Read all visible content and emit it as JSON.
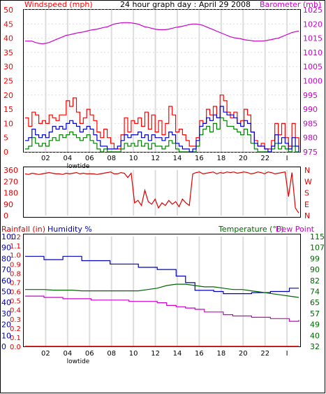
{
  "colors": {
    "wind": "#ff0000",
    "gust": "#ff0000",
    "avgwind": "#0000cc",
    "minwind": "#008000",
    "baro": "#cc00cc",
    "direction": "#dd0000",
    "rain": "#dd0000",
    "humidity": "#0000bb",
    "temperature": "#006600",
    "dewpoint": "#cc00cc",
    "grid": "#dddddd",
    "frame": "#000000"
  },
  "chart_data": [
    {
      "type": "line",
      "title": "24 hour graph day : April 29 2008",
      "left_label": "Windspeed (mph)",
      "right_label": "Barometer (mb)",
      "x_ticks": [
        "02",
        "04",
        "06",
        "08",
        "10",
        "12",
        "14",
        "16",
        "18",
        "20",
        "22",
        "I"
      ],
      "x_marker": "lowtide",
      "ylim_left": [
        0,
        50
      ],
      "ylim_right": [
        975,
        1025
      ],
      "yticks_left": [
        "50",
        "45",
        "40",
        "35",
        "30",
        "25",
        "20",
        "15",
        "10",
        "5",
        "0"
      ],
      "yticks_right": [
        "1025",
        "1020",
        "1015",
        "1010",
        "1005",
        "1000",
        "995",
        "990",
        "985",
        "980",
        "975"
      ],
      "series": [
        {
          "values": [
            12,
            9,
            14,
            13,
            10,
            11,
            10,
            13,
            12,
            11,
            13,
            13,
            18,
            16,
            19,
            14,
            10,
            12,
            15,
            13,
            11,
            7,
            5,
            8,
            5,
            3,
            1,
            1,
            6,
            12,
            7,
            11,
            10,
            12,
            9,
            14,
            8,
            13,
            7,
            11,
            6,
            10,
            16,
            13,
            7,
            8,
            6,
            4,
            2,
            2,
            5,
            11,
            10,
            15,
            13,
            16,
            12,
            20,
            18,
            14,
            12,
            14,
            10,
            11,
            15,
            13,
            7,
            4,
            2,
            3,
            1,
            1,
            4,
            10,
            6,
            10,
            5,
            2,
            10,
            5,
            1
          ]
        },
        {
          "values": [
            4,
            5,
            8,
            6,
            5,
            6,
            5,
            7,
            9,
            8,
            9,
            8,
            10,
            11,
            10,
            9,
            7,
            8,
            9,
            8,
            6,
            4,
            2,
            2,
            1,
            1,
            1,
            2,
            4,
            6,
            5,
            6,
            6,
            7,
            5,
            6,
            4,
            6,
            5,
            5,
            4,
            5,
            7,
            6,
            3,
            2,
            1,
            1,
            0,
            1,
            4,
            9,
            10,
            12,
            11,
            13,
            12,
            16,
            14,
            13,
            13,
            12,
            10,
            9,
            11,
            10,
            7,
            3,
            2,
            2,
            1,
            0,
            2,
            6,
            3,
            5,
            3,
            1,
            5,
            2,
            0
          ]
        },
        {
          "values": [
            1,
            2,
            5,
            3,
            2,
            3,
            2,
            4,
            5,
            4,
            6,
            5,
            6,
            7,
            6,
            5,
            4,
            5,
            6,
            4,
            3,
            1,
            0,
            1,
            0,
            0,
            0,
            0,
            1,
            3,
            2,
            3,
            2,
            4,
            2,
            3,
            1,
            3,
            2,
            2,
            1,
            2,
            4,
            3,
            1,
            0,
            0,
            0,
            0,
            0,
            2,
            6,
            8,
            9,
            7,
            10,
            8,
            12,
            11,
            9,
            9,
            8,
            7,
            6,
            8,
            6,
            3,
            1,
            0,
            0,
            0,
            0,
            1,
            3,
            1,
            2,
            1,
            0,
            2,
            0,
            0
          ]
        },
        {
          "values": [
            1014,
            1014,
            1014,
            1013.5,
            1013.2,
            1013,
            1013.2,
            1013.5,
            1014,
            1014.5,
            1015,
            1015.5,
            1016,
            1016.2,
            1016.5,
            1016.8,
            1017,
            1017.2,
            1017.5,
            1017.8,
            1018,
            1018.2,
            1018.5,
            1018.8,
            1019,
            1019.5,
            1020,
            1020.2,
            1020.4,
            1020.5,
            1020.5,
            1020.4,
            1020.2,
            1020,
            1019.5,
            1019,
            1018.8,
            1018.5,
            1018.2,
            1018,
            1018,
            1018,
            1018.2,
            1018.5,
            1018.8,
            1019,
            1019.2,
            1019.5,
            1019.8,
            1020,
            1020,
            1019.8,
            1019.5,
            1019,
            1018.5,
            1018,
            1017.5,
            1017,
            1016.5,
            1016,
            1015.5,
            1015.2,
            1015,
            1014.8,
            1014.5,
            1014.3,
            1014.2,
            1014,
            1014,
            1014,
            1014.1,
            1014.3,
            1014.5,
            1014.8,
            1015,
            1015.5,
            1016,
            1016.5,
            1017,
            1017.3,
            1017.5
          ]
        }
      ]
    },
    {
      "type": "line",
      "left_ticks": [
        "360",
        "270",
        "180",
        "90",
        "0"
      ],
      "right_ticks": [
        "N",
        "W",
        "S",
        "E",
        "N"
      ],
      "ylim": [
        0,
        360
      ],
      "series": [
        {
          "values": [
            330,
            325,
            335,
            330,
            325,
            330,
            335,
            340,
            335,
            330,
            330,
            325,
            335,
            330,
            335,
            340,
            330,
            335,
            330,
            330,
            330,
            325,
            330,
            335,
            340,
            345,
            330,
            330,
            340,
            335,
            300,
            335,
            100,
            120,
            80,
            200,
            110,
            90,
            130,
            60,
            100,
            80,
            120,
            90,
            110,
            70,
            130,
            100,
            80,
            330,
            340,
            345,
            330,
            335,
            340,
            345,
            330,
            340,
            335,
            345,
            340,
            345,
            335,
            340,
            345,
            340,
            330,
            335,
            345,
            340,
            330,
            345,
            340,
            330,
            335,
            340,
            345,
            150,
            340,
            60,
            20
          ]
        }
      ]
    },
    {
      "type": "line",
      "left_label_rain": "Rainfall (in)",
      "left_label_hum": "Humidity %",
      "right_label_temp": "Temperature (°F)",
      "right_label_dew": "Dew Point",
      "x_ticks": [
        "02",
        "04",
        "06",
        "08",
        "10",
        "12",
        "14",
        "16",
        "18",
        "20",
        "22",
        "I"
      ],
      "x_marker": "lowtide",
      "yticks_humidity": [
        "100",
        "90",
        "80",
        "70",
        "60",
        "50",
        "40",
        "30",
        "20",
        "10",
        "0"
      ],
      "yticks_rain": [
        "1.2",
        "1.1",
        "1.0",
        "0.9",
        "0.8",
        "0.7",
        "0.6",
        "0.5",
        "0.4",
        "0.3",
        "0.2",
        "0.1",
        "0.0"
      ],
      "yticks_temp": [
        "115",
        "107",
        "99",
        "90",
        "82",
        "74",
        "65",
        "57",
        "49",
        "40",
        "32"
      ],
      "ylim_humidity": [
        0,
        100
      ],
      "ylim_temp": [
        32,
        115
      ],
      "series": [
        {
          "values": [
            0,
            0,
            0,
            0,
            0,
            0,
            0,
            0,
            0,
            0,
            0,
            0,
            0,
            0,
            0,
            0,
            0,
            0,
            0,
            0,
            0,
            0,
            0,
            0,
            0,
            0,
            0,
            0,
            0,
            0
          ]
        },
        {
          "values": [
            82,
            82,
            79,
            79,
            82,
            82,
            78,
            78,
            78,
            75,
            75,
            75,
            72,
            72,
            70,
            70,
            64,
            58,
            51,
            51,
            50,
            48,
            48,
            48,
            49,
            49,
            50,
            50,
            53,
            53
          ]
        },
        {
          "values": [
            75,
            75,
            75,
            74.5,
            74.5,
            74.5,
            74,
            74,
            74,
            74,
            74,
            74,
            74,
            75,
            76,
            78,
            79,
            79,
            78,
            77,
            77,
            76,
            75,
            75,
            74,
            73,
            72,
            71,
            70,
            69
          ]
        },
        {
          "values": [
            70,
            70,
            69,
            69,
            68,
            68,
            68,
            67,
            67,
            67,
            67,
            66,
            66,
            66,
            65,
            63,
            62,
            61,
            60,
            58,
            58,
            56,
            55,
            55,
            54,
            54,
            53,
            53,
            51,
            52
          ]
        }
      ]
    }
  ]
}
